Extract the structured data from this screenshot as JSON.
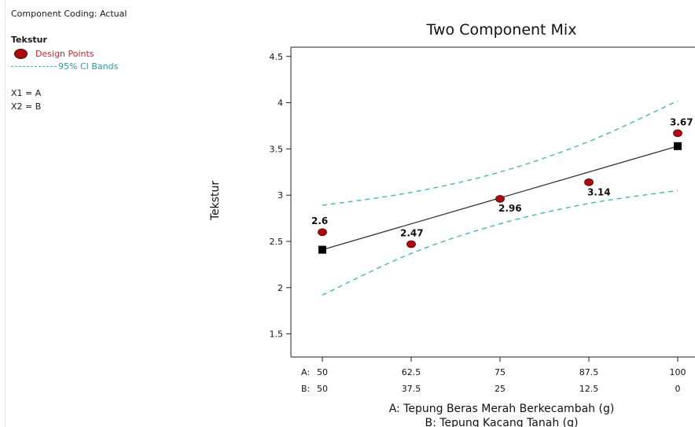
{
  "sidebar": {
    "component_coding": "Component Coding: Actual",
    "response": "Tekstur",
    "legend_points": "Design Points",
    "legend_ci": "95% CI Bands",
    "x1": "X1 = A",
    "x2": "X2 = B"
  },
  "colors": {
    "points": "#a80d12",
    "ci": "#45b5b8",
    "fit": "#333333",
    "legend_points_text": "#c0272d"
  },
  "chart_data": {
    "type": "line",
    "title": "Two Component Mix",
    "ylabel": "Tekstur",
    "xlabel_a": "A: Tepung Beras Merah Berkecambah (g)",
    "xlabel_b": "B: Tepung Kacang Tanah (g)",
    "axis_prefix_a": "A:",
    "axis_prefix_b": "B:",
    "ylim": [
      1.25,
      4.6
    ],
    "xlim": [
      50,
      100
    ],
    "yticks": [
      "1.5",
      "2",
      "2.5",
      "3",
      "3.5",
      "4",
      "4.5"
    ],
    "xticks_a": [
      "50",
      "62.5",
      "75",
      "87.5",
      "100"
    ],
    "xticks_b": [
      "50",
      "37.5",
      "25",
      "12.5",
      "0"
    ],
    "design_points": {
      "x": [
        50,
        62.5,
        75,
        87.5,
        100
      ],
      "y": [
        2.6,
        2.47,
        2.96,
        3.14,
        3.67
      ],
      "labels": [
        "2.6",
        "2.47",
        "2.96",
        "3.14",
        "3.67"
      ]
    },
    "fit_line": {
      "x": [
        50,
        100
      ],
      "y": [
        2.41,
        3.53
      ]
    },
    "ci_upper": {
      "x": [
        50,
        62.5,
        75,
        87.5,
        100
      ],
      "y": [
        2.89,
        3.03,
        3.25,
        3.58,
        4.02
      ]
    },
    "ci_lower": {
      "x": [
        50,
        62.5,
        75,
        87.5,
        100
      ],
      "y": [
        1.92,
        2.37,
        2.69,
        2.91,
        3.05
      ]
    }
  }
}
